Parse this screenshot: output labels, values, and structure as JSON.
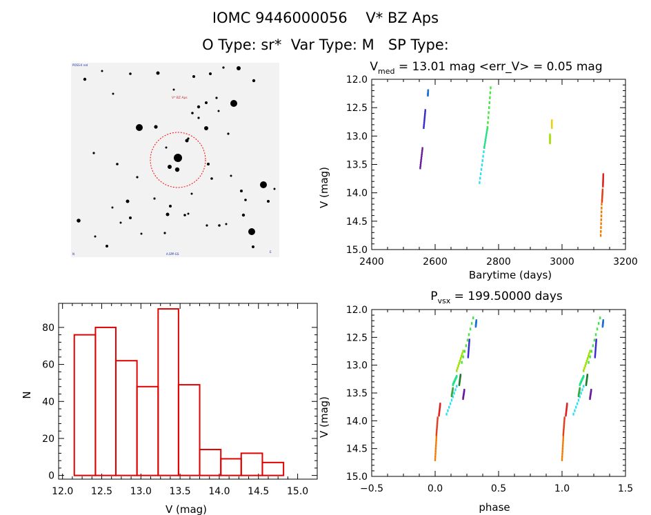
{
  "header": {
    "line1": "IOMC 9446000056    V* BZ Aps",
    "line2": "O Type: sr*  Var Type: M   SP Type:"
  },
  "colors": {
    "hist_bar": "#e00000",
    "target_circle": "#ff0000",
    "sky_background": "#f2f2f2",
    "star": "#000000",
    "phase_palette": [
      "#6a1b9a",
      "#3a2bd0",
      "#1e6fd6",
      "#2fe0f0",
      "#22e08a",
      "#3ee83a",
      "#a0e000",
      "#f0d000",
      "#f07a00",
      "#e0401a",
      "#e02020"
    ]
  },
  "sky_image": {
    "label_top_left": "POSS-II red",
    "target_label": "V* BZ Aps",
    "label_bottom": "A.SPP-GS",
    "label_bottom_left": "N",
    "label_bottom_right": "E"
  },
  "chart_data": [
    {
      "type": "scatter",
      "id": "light-curve",
      "title": "V_med = 13.01 mag <err_V> = 0.05 mag",
      "title_main": "V",
      "title_sub": "med",
      "title_rest": " = 13.01 mag <err_V> = 0.05 mag",
      "xlabel": "Barytime (days)",
      "ylabel": "V (mag)",
      "xlim": [
        2400,
        3200
      ],
      "ylim": [
        12.0,
        15.0
      ],
      "y_inverted": true,
      "xticks": [
        2400,
        2600,
        2800,
        3000,
        3200
      ],
      "yticks": [
        12.0,
        12.5,
        13.0,
        13.5,
        14.0,
        14.5,
        15.0
      ],
      "yticklabels": [
        "12.0",
        "12.5",
        "13.0",
        "13.5",
        "14.0",
        "14.5",
        "15.0"
      ],
      "segments": [
        {
          "x0": 2553,
          "y0": 13.56,
          "x1": 2560,
          "y1": 13.22,
          "color": "#6a1b9a"
        },
        {
          "x0": 2564,
          "y0": 12.85,
          "x1": 2569,
          "y1": 12.55,
          "color": "#3a2bd0"
        },
        {
          "x0": 2577,
          "y0": 12.28,
          "x1": 2578,
          "y1": 12.2,
          "color": "#1e6fd6"
        },
        {
          "x0": 2740,
          "y0": 13.82,
          "x1": 2755,
          "y1": 13.2,
          "color": "#2fe0f0"
        },
        {
          "x0": 2755,
          "y0": 13.2,
          "x1": 2765,
          "y1": 12.85,
          "color": "#22e08a"
        },
        {
          "x0": 2765,
          "y0": 12.85,
          "x1": 2775,
          "y1": 12.15,
          "color": "#3ee83a"
        },
        {
          "x0": 2962,
          "y0": 13.12,
          "x1": 2962,
          "y1": 12.98,
          "color": "#a0e000"
        },
        {
          "x0": 2968,
          "y0": 12.85,
          "x1": 2968,
          "y1": 12.73,
          "color": "#f0d000"
        },
        {
          "x0": 3122,
          "y0": 14.75,
          "x1": 3125,
          "y1": 14.2,
          "color": "#f07a00"
        },
        {
          "x0": 3126,
          "y0": 14.15,
          "x1": 3128,
          "y1": 13.95,
          "color": "#e0401a"
        },
        {
          "x0": 3129,
          "y0": 13.88,
          "x1": 3130,
          "y1": 13.68,
          "color": "#e02020"
        }
      ]
    },
    {
      "type": "scatter",
      "id": "phased-curve",
      "title": "P_vsx = 199.50000 days",
      "title_main": "P",
      "title_sub": "vsx",
      "title_rest": " = 199.50000 days",
      "xlabel": "phase",
      "ylabel": "V (mag)",
      "xlim": [
        -0.5,
        1.5
      ],
      "ylim": [
        12.0,
        15.0
      ],
      "y_inverted": true,
      "xticks": [
        -0.5,
        0.0,
        0.5,
        1.0,
        1.5
      ],
      "xticklabels": [
        "−0.5",
        "0.0",
        "0.5",
        "1.0",
        "1.5"
      ],
      "yticks": [
        12.0,
        12.5,
        13.0,
        13.5,
        14.0,
        14.5,
        15.0
      ],
      "yticklabels": [
        "12.0",
        "12.5",
        "13.0",
        "13.5",
        "14.0",
        "14.5",
        "15.0"
      ],
      "repeat_offsets": [
        0,
        1
      ],
      "segments": [
        {
          "x0": 0.0,
          "y0": 14.7,
          "x1": 0.01,
          "y1": 14.3,
          "color": "#f07a00"
        },
        {
          "x0": 0.01,
          "y0": 14.25,
          "x1": 0.02,
          "y1": 13.95,
          "color": "#e0401a"
        },
        {
          "x0": 0.03,
          "y0": 13.9,
          "x1": 0.04,
          "y1": 13.7,
          "color": "#e02020"
        },
        {
          "x0": 0.09,
          "y0": 13.88,
          "x1": 0.17,
          "y1": 13.38,
          "color": "#2fe0f0"
        },
        {
          "x0": 0.14,
          "y0": 13.35,
          "x1": 0.17,
          "y1": 13.2,
          "color": "#22e08a"
        },
        {
          "x0": 0.13,
          "y0": 13.55,
          "x1": 0.14,
          "y1": 13.42,
          "color": "#3ea840"
        },
        {
          "x0": 0.17,
          "y0": 13.1,
          "x1": 0.22,
          "y1": 12.75,
          "color": "#a0e000"
        },
        {
          "x0": 0.21,
          "y0": 12.95,
          "x1": 0.3,
          "y1": 12.15,
          "color": "#3ee83a"
        },
        {
          "x0": 0.19,
          "y0": 13.35,
          "x1": 0.2,
          "y1": 13.18,
          "color": "#1a7a2a"
        },
        {
          "x0": 0.22,
          "y0": 13.6,
          "x1": 0.23,
          "y1": 13.45,
          "color": "#6a1b9a"
        },
        {
          "x0": 0.26,
          "y0": 12.85,
          "x1": 0.27,
          "y1": 12.55,
          "color": "#3a2bd0"
        },
        {
          "x0": 0.32,
          "y0": 12.3,
          "x1": 0.325,
          "y1": 12.2,
          "color": "#1e6fd6"
        }
      ]
    },
    {
      "type": "bar",
      "id": "histogram",
      "title": "",
      "xlabel": "V (mag)",
      "ylabel": "N",
      "xlim": [
        11.95,
        15.25
      ],
      "ylim": [
        -2,
        93
      ],
      "xticks": [
        12.0,
        12.5,
        13.0,
        13.5,
        14.0,
        14.5,
        15.0
      ],
      "xticklabels": [
        "12.0",
        "12.5",
        "13.0",
        "13.5",
        "14.0",
        "14.5",
        "15.0"
      ],
      "yticks": [
        0,
        20,
        40,
        60,
        80
      ],
      "yticklabels": [
        "0",
        "20",
        "40",
        "60",
        "80"
      ],
      "bin_edges": [
        12.15,
        12.42,
        12.68,
        12.95,
        13.22,
        13.48,
        13.75,
        14.02,
        14.28,
        14.55,
        14.82
      ],
      "values": [
        76,
        80,
        62,
        48,
        90,
        49,
        14,
        9,
        12,
        7
      ]
    }
  ]
}
